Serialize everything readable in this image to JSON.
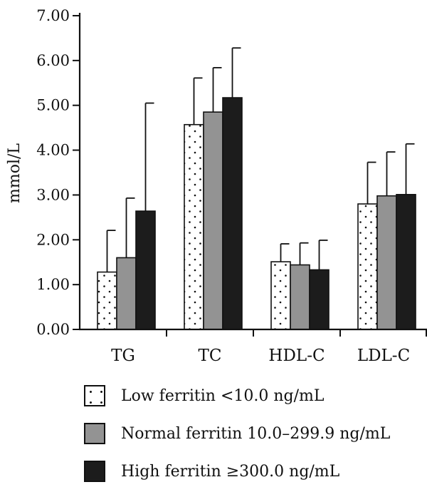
{
  "chart_data": {
    "type": "bar",
    "categories": [
      "TG",
      "TC",
      "HDL-C",
      "LDL-C"
    ],
    "series": [
      {
        "name": "Low ferritin <10.0 ng/mL",
        "values": [
          1.28,
          4.57,
          1.51,
          2.8
        ],
        "errors": [
          0.93,
          1.04,
          0.4,
          0.93
        ]
      },
      {
        "name": "Normal ferritin 10.0–299.9 ng/mL",
        "values": [
          1.6,
          4.85,
          1.44,
          2.98
        ],
        "errors": [
          1.33,
          0.99,
          0.49,
          0.98
        ]
      },
      {
        "name": "High ferritin ≥300.0 ng/mL",
        "values": [
          2.64,
          5.17,
          1.33,
          3.01
        ],
        "errors": [
          2.41,
          1.11,
          0.66,
          1.13
        ]
      }
    ],
    "ylabel": "mmol/L",
    "xlabel": "",
    "ylim": [
      0,
      7
    ],
    "yticks": [
      "0.00",
      "1.00",
      "2.00",
      "3.00",
      "4.00",
      "5.00",
      "6.00",
      "7.00"
    ],
    "legend_position": "bottom",
    "grid": false,
    "colors": [
      "#ffffff",
      "#939393",
      "#1c1c1c"
    ],
    "patterns": [
      "dotted",
      "solid",
      "solid"
    ]
  }
}
